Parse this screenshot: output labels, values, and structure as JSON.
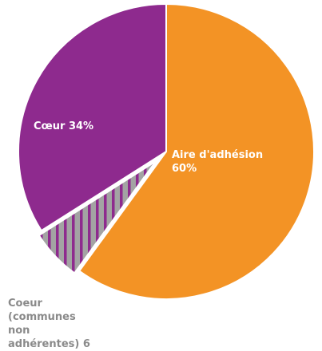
{
  "chart_data": {
    "type": "pie",
    "categories": [
      "Aire d'adhésion",
      "Coeur (communes non adhérentes)",
      "Cœur"
    ],
    "values": [
      60,
      6,
      34
    ],
    "value_labels": [
      "60%",
      "6 %",
      "34%"
    ],
    "colors": [
      "#f39325",
      "#a3a3a3",
      "#8e2a8e"
    ],
    "hatch": [
      null,
      "#8e2a8e",
      null
    ]
  }
}
